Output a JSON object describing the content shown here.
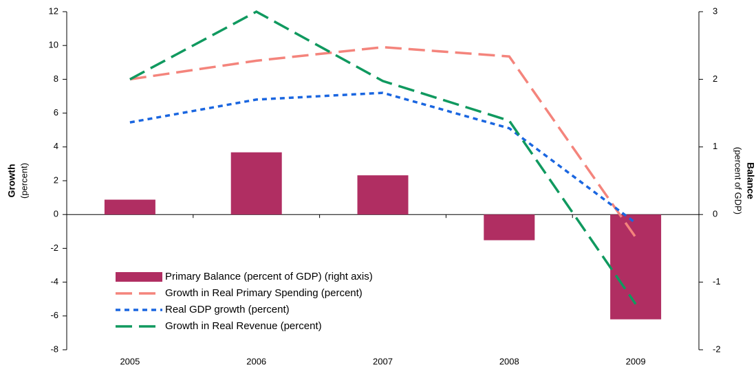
{
  "chart_data": {
    "type": "combo",
    "ylabel": "Growth",
    "ylabel_sub": "(percent)",
    "y2label": "Balance",
    "y2label_sub": "(percent of GDP)",
    "categories": [
      "2005",
      "2006",
      "2007",
      "2008",
      "2009"
    ],
    "ylim": [
      -8,
      12
    ],
    "yticks": [
      -8,
      -6,
      -4,
      -2,
      0,
      2,
      4,
      6,
      8,
      10,
      12
    ],
    "y2lim": [
      -2,
      3
    ],
    "y2ticks": [
      -2,
      -1,
      0,
      1,
      2,
      3
    ],
    "legend": "lower left",
    "series": [
      {
        "name": "Primary Balance (percent of GDP) (right axis)",
        "type": "bar",
        "axis": "y2",
        "color": "#b02e62",
        "values": [
          0.22,
          0.92,
          0.58,
          -0.38,
          -1.55
        ]
      },
      {
        "name": "Growth in Real Primary Spending (percent)",
        "type": "line",
        "color": "#f4847c",
        "dash": "24,10",
        "values": [
          8.0,
          9.1,
          9.9,
          9.35,
          -1.35
        ]
      },
      {
        "name": "Real GDP growth (percent)",
        "type": "line",
        "color": "#1a66e0",
        "dash": "7,6",
        "values": [
          5.45,
          6.8,
          7.2,
          5.1,
          -0.5
        ]
      },
      {
        "name": "Growth in Real Revenue (percent)",
        "type": "line",
        "color": "#10995f",
        "dash": "24,10",
        "values": [
          8.0,
          12.0,
          7.9,
          5.55,
          -5.3
        ]
      }
    ]
  }
}
